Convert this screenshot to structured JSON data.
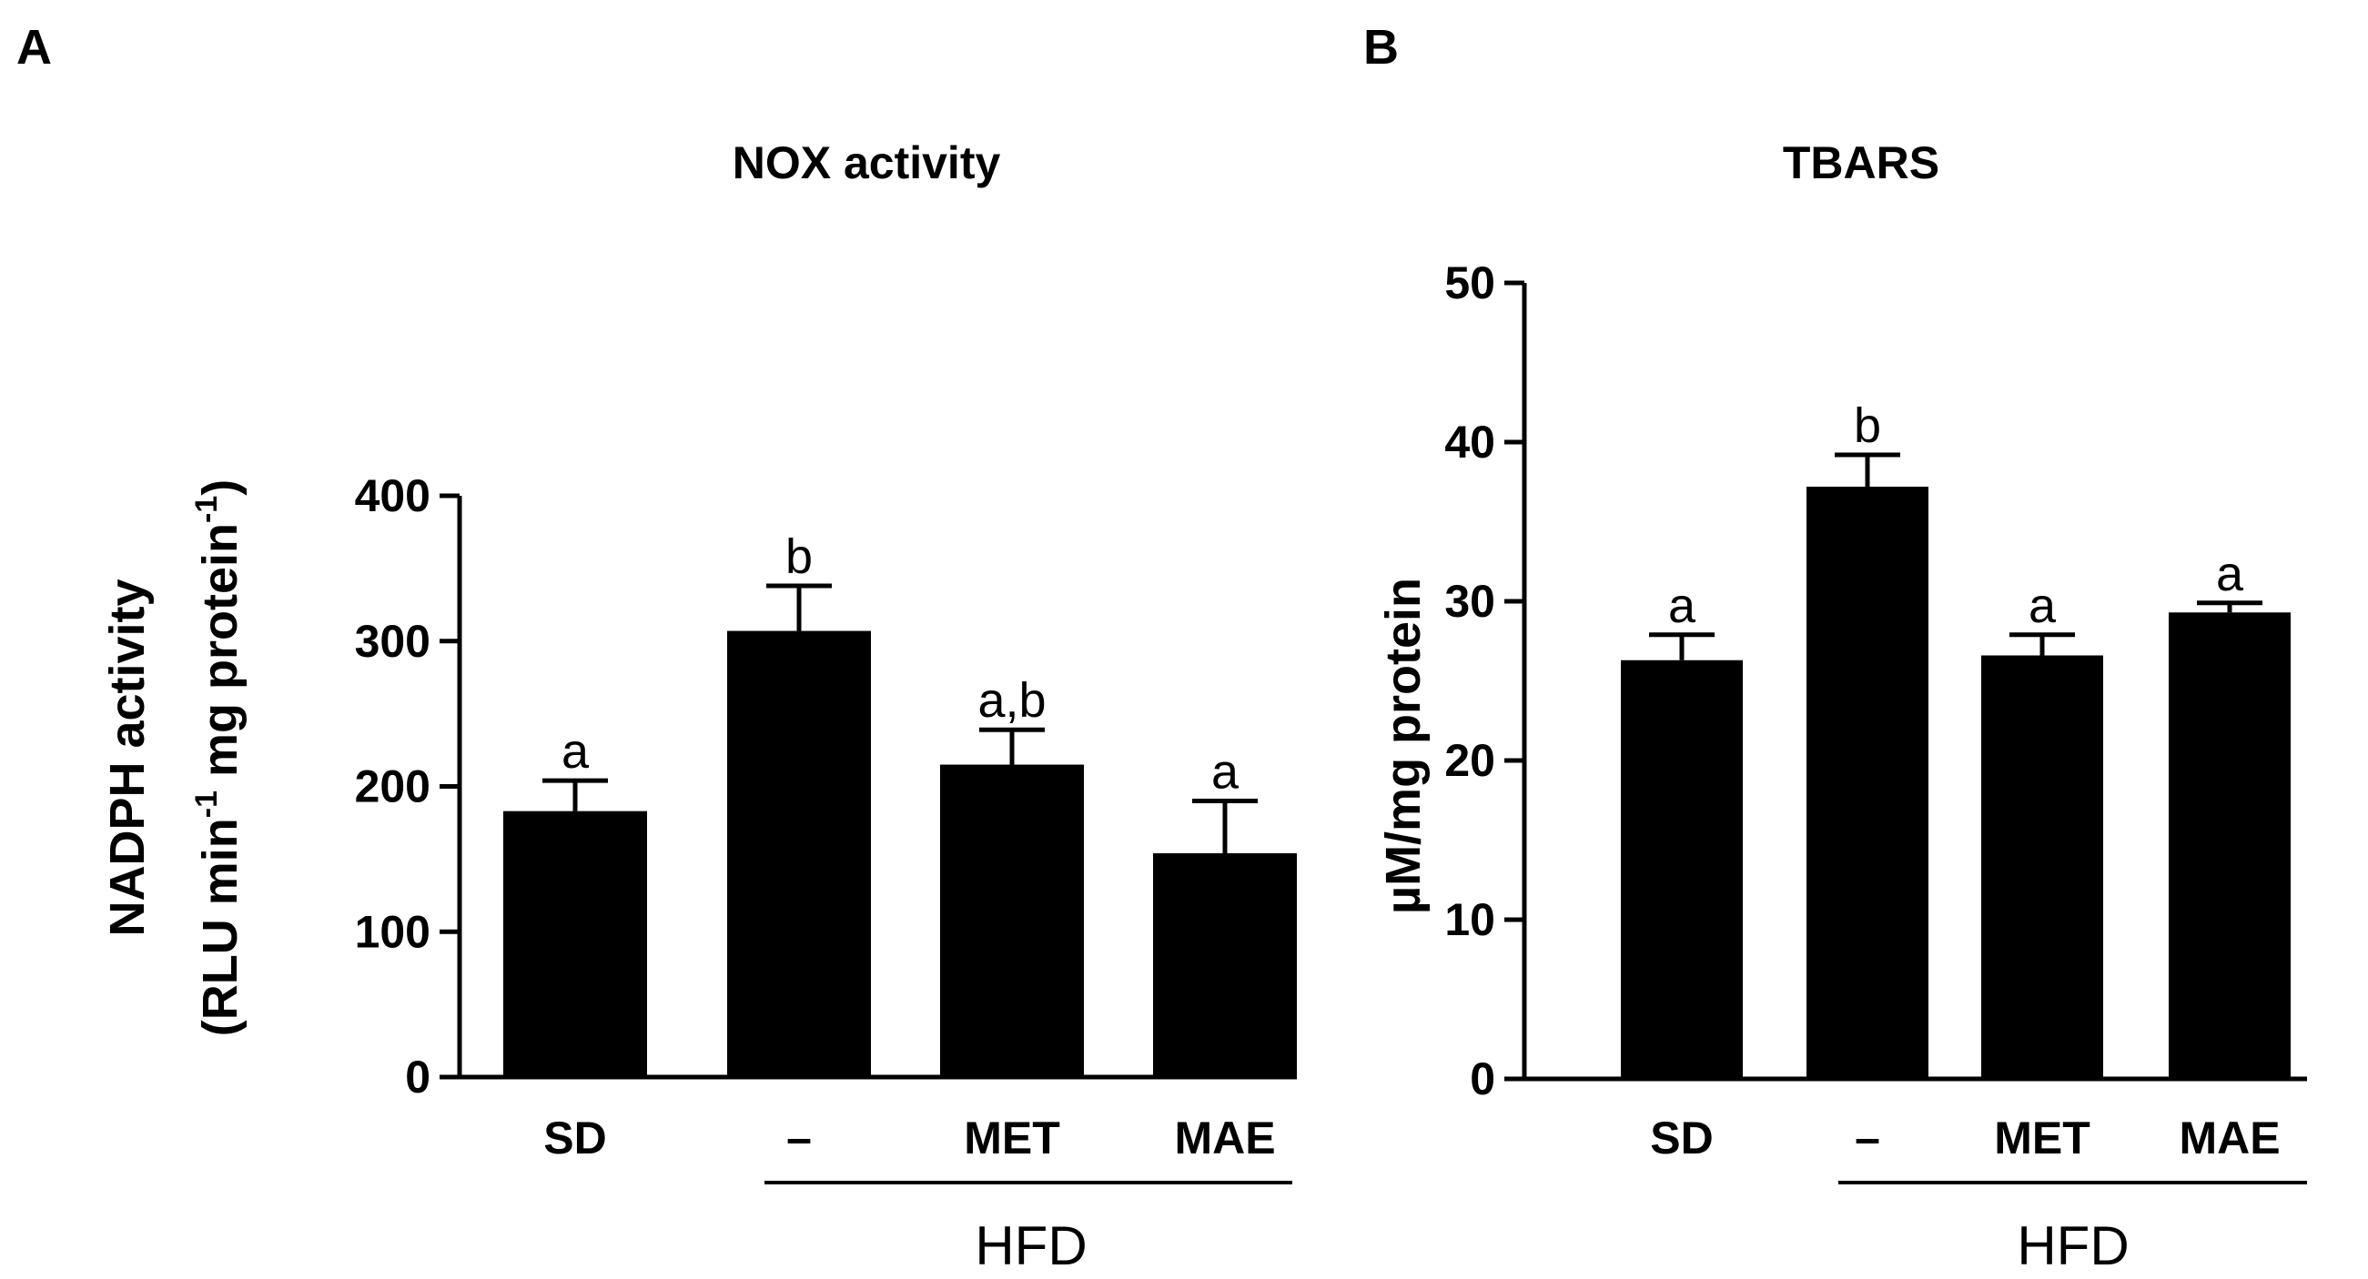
{
  "chart_data": [
    {
      "type": "bar",
      "panel": "A",
      "title": "NOX activity",
      "ylabel_line1": "NADPH activity",
      "ylabel_line2": {
        "p1": "(RLU  min",
        "sup1": "-1",
        "p2": " mg protein",
        "sup2": "-1",
        "p3": ")"
      },
      "xlabel": "",
      "group_label": "HFD",
      "categories": [
        "SD",
        "–",
        "MET",
        "MAE"
      ],
      "values": [
        183,
        307,
        215,
        154
      ],
      "errors": [
        21,
        31,
        24,
        36
      ],
      "significance": [
        "a",
        "b",
        "a,b",
        "a"
      ],
      "ylim": [
        0,
        400
      ],
      "yticks": [
        0,
        100,
        200,
        300,
        400
      ],
      "bar_color": "#000000",
      "grid": false
    },
    {
      "type": "bar",
      "panel": "B",
      "title": "TBARS",
      "ylabel": "µM/mg protein",
      "xlabel": "",
      "group_label": "HFD",
      "categories": [
        "SD",
        "–",
        "MET",
        "MAE"
      ],
      "values": [
        26.3,
        37.2,
        26.6,
        29.3
      ],
      "errors": [
        1.6,
        2.0,
        1.3,
        0.6
      ],
      "significance": [
        "a",
        "b",
        "a",
        "a"
      ],
      "ylim": [
        0,
        50
      ],
      "yticks": [
        0,
        10,
        20,
        30,
        40,
        50
      ],
      "bar_color": "#000000",
      "grid": false
    }
  ]
}
